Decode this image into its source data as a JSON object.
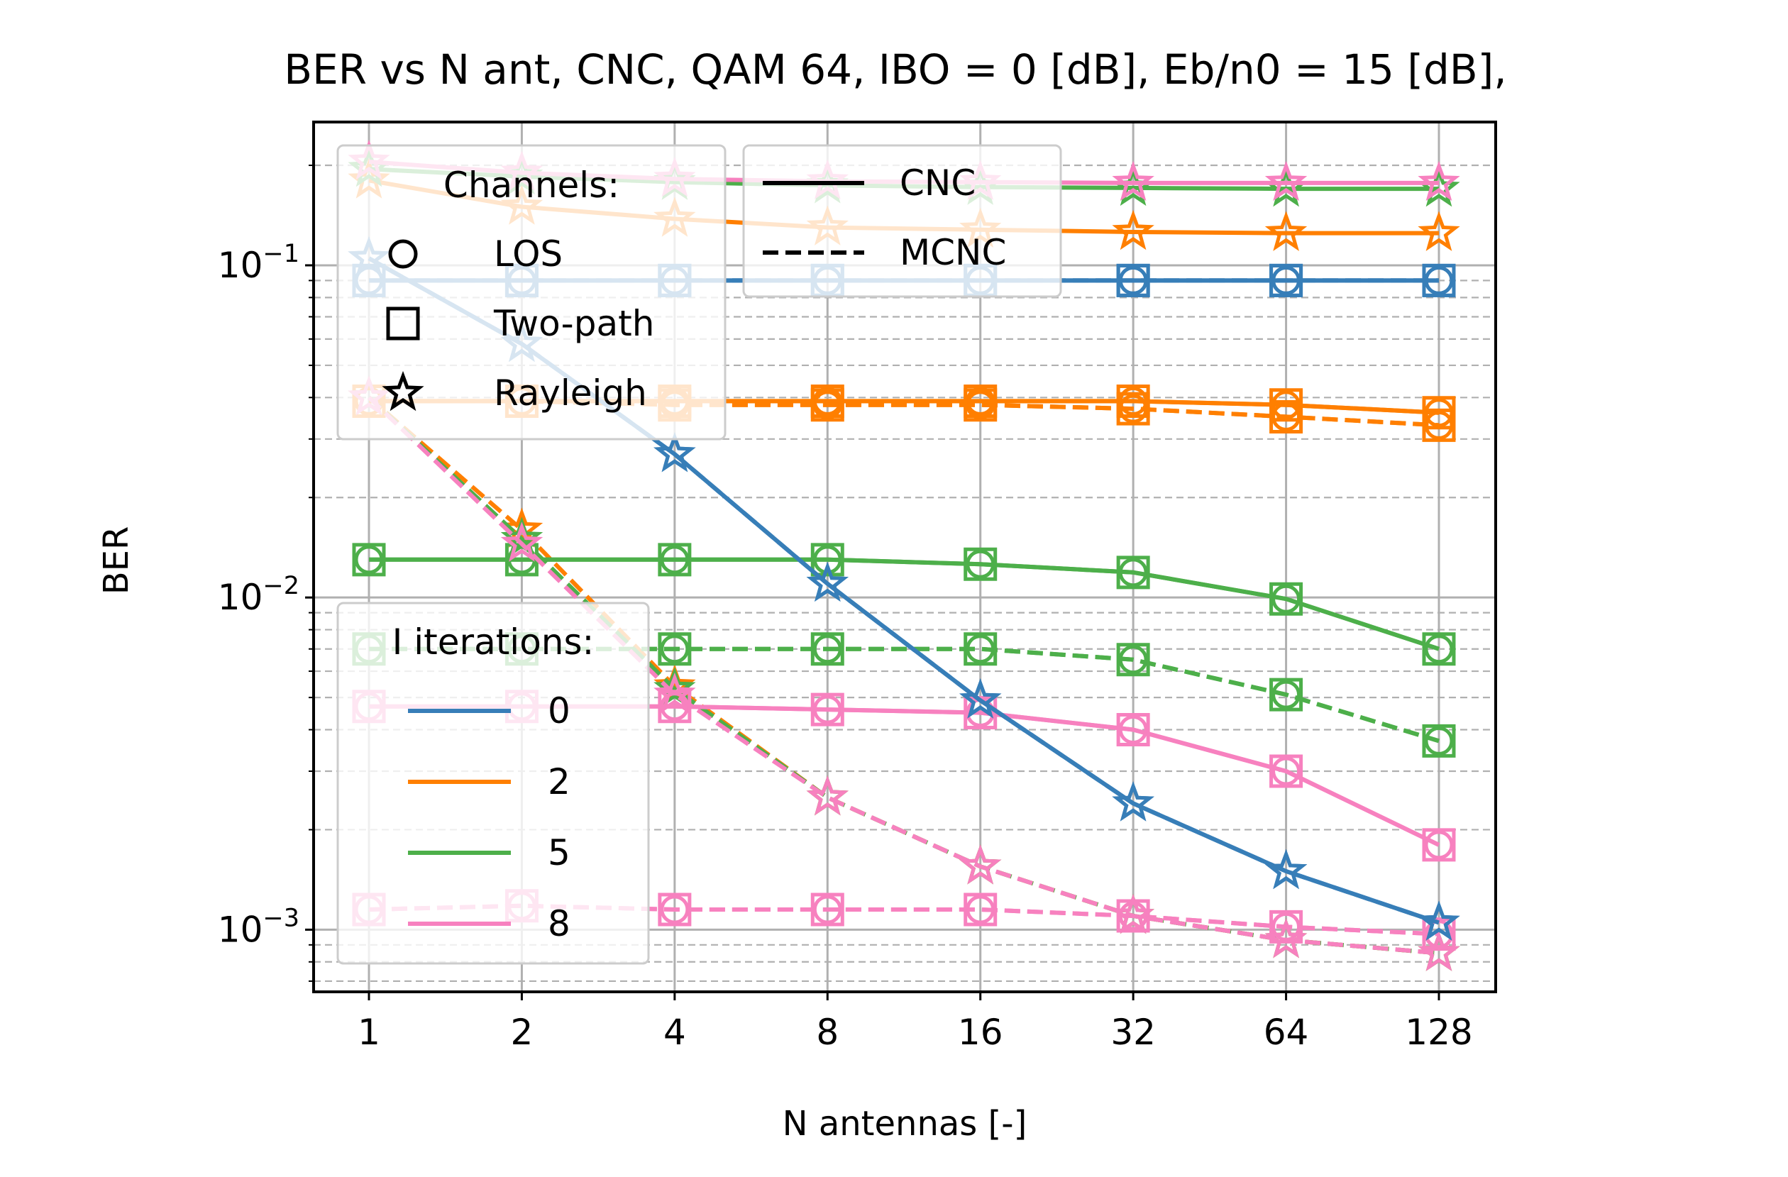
{
  "chart_data": {
    "type": "line",
    "title": "BER vs N ant, CNC, QAM 64, IBO = 0 [dB], Eb/n0 = 15 [dB],",
    "xlabel": "N antennas [-]",
    "ylabel": "BER",
    "x": [
      1,
      2,
      4,
      8,
      16,
      32,
      64,
      128
    ],
    "xscale": "log2",
    "yscale": "log10",
    "ylim": [
      0.00065,
      0.27
    ],
    "grid": true,
    "colors": {
      "0": "#377eb8",
      "2": "#ff7f00",
      "5": "#4daf4a",
      "8": "#f781bf"
    },
    "y_ticks": [
      {
        "base": "10",
        "exp": "−1",
        "value": 0.1
      },
      {
        "base": "10",
        "exp": "−2",
        "value": 0.01
      },
      {
        "base": "10",
        "exp": "−3",
        "value": 0.001
      }
    ],
    "x_tick_labels": [
      "1",
      "2",
      "4",
      "8",
      "16",
      "32",
      "64",
      "128"
    ],
    "legend_channels": {
      "title": "Channels:",
      "placement": "top-left",
      "items": [
        {
          "marker": "circle",
          "label": "LOS"
        },
        {
          "marker": "square",
          "label": "Two-path"
        },
        {
          "marker": "star",
          "label": "Rayleigh"
        }
      ]
    },
    "legend_methods": {
      "placement": "top-center",
      "items": [
        {
          "style": "solid",
          "label": "CNC"
        },
        {
          "style": "dashed",
          "label": "MCNC"
        }
      ]
    },
    "legend_iterations": {
      "title": "I iterations:",
      "placement": "lower-left",
      "items": [
        {
          "iter": "0",
          "label": "0"
        },
        {
          "iter": "2",
          "label": "2"
        },
        {
          "iter": "5",
          "label": "5"
        },
        {
          "iter": "8",
          "label": "8"
        }
      ]
    },
    "series": [
      {
        "channel": "LOS",
        "method": "CNC",
        "iter": "0",
        "values": [
          0.09,
          0.09,
          0.09,
          0.09,
          0.09,
          0.09,
          0.09,
          0.09
        ]
      },
      {
        "channel": "LOS",
        "method": "MCNC",
        "iter": "0",
        "values": [
          0.09,
          0.09,
          0.09,
          0.09,
          0.09,
          0.09,
          0.09,
          0.09
        ]
      },
      {
        "channel": "LOS",
        "method": "CNC",
        "iter": "2",
        "values": [
          0.039,
          0.039,
          0.039,
          0.039,
          0.039,
          0.039,
          0.038,
          0.036
        ]
      },
      {
        "channel": "LOS",
        "method": "MCNC",
        "iter": "2",
        "values": [
          0.039,
          0.039,
          0.038,
          0.038,
          0.038,
          0.037,
          0.035,
          0.033
        ]
      },
      {
        "channel": "LOS",
        "method": "CNC",
        "iter": "5",
        "values": [
          0.013,
          0.013,
          0.013,
          0.013,
          0.0126,
          0.0119,
          0.0099,
          0.007
        ]
      },
      {
        "channel": "LOS",
        "method": "MCNC",
        "iter": "5",
        "values": [
          0.007,
          0.007,
          0.007,
          0.007,
          0.007,
          0.0065,
          0.0051,
          0.0037
        ]
      },
      {
        "channel": "LOS",
        "method": "CNC",
        "iter": "8",
        "values": [
          0.0047,
          0.0047,
          0.0047,
          0.0046,
          0.0045,
          0.004,
          0.003,
          0.0018
        ]
      },
      {
        "channel": "LOS",
        "method": "MCNC",
        "iter": "8",
        "values": [
          0.00115,
          0.00118,
          0.00115,
          0.00115,
          0.00115,
          0.0011,
          0.00102,
          0.00097
        ]
      },
      {
        "channel": "Two-path",
        "method": "CNC",
        "iter": "0",
        "values": [
          0.09,
          0.09,
          0.09,
          0.09,
          0.09,
          0.09,
          0.09,
          0.09
        ]
      },
      {
        "channel": "Two-path",
        "method": "MCNC",
        "iter": "0",
        "values": [
          0.09,
          0.09,
          0.09,
          0.09,
          0.09,
          0.09,
          0.09,
          0.09
        ]
      },
      {
        "channel": "Two-path",
        "method": "CNC",
        "iter": "2",
        "values": [
          0.039,
          0.039,
          0.039,
          0.039,
          0.039,
          0.039,
          0.038,
          0.036
        ]
      },
      {
        "channel": "Two-path",
        "method": "MCNC",
        "iter": "2",
        "values": [
          0.039,
          0.039,
          0.038,
          0.038,
          0.038,
          0.037,
          0.035,
          0.033
        ]
      },
      {
        "channel": "Two-path",
        "method": "CNC",
        "iter": "5",
        "values": [
          0.013,
          0.013,
          0.013,
          0.013,
          0.0126,
          0.0119,
          0.0099,
          0.007
        ]
      },
      {
        "channel": "Two-path",
        "method": "MCNC",
        "iter": "5",
        "values": [
          0.007,
          0.007,
          0.007,
          0.007,
          0.007,
          0.0065,
          0.0051,
          0.0037
        ]
      },
      {
        "channel": "Two-path",
        "method": "CNC",
        "iter": "8",
        "values": [
          0.0047,
          0.0047,
          0.0047,
          0.0046,
          0.0045,
          0.004,
          0.003,
          0.0018
        ]
      },
      {
        "channel": "Two-path",
        "method": "MCNC",
        "iter": "8",
        "values": [
          0.00115,
          0.00118,
          0.00115,
          0.00115,
          0.00115,
          0.0011,
          0.00102,
          0.00097
        ]
      },
      {
        "channel": "Rayleigh",
        "method": "CNC",
        "iter": "0",
        "values": [
          0.105,
          0.058,
          0.027,
          0.011,
          0.0049,
          0.0024,
          0.0015,
          0.00105
        ]
      },
      {
        "channel": "Rayleigh",
        "method": "MCNC",
        "iter": "0",
        "values": [
          0.105,
          0.058,
          0.027,
          0.011,
          0.0049,
          0.0024,
          0.0015,
          0.00105
        ]
      },
      {
        "channel": "Rayleigh",
        "method": "CNC",
        "iter": "2",
        "values": [
          0.18,
          0.15,
          0.138,
          0.13,
          0.128,
          0.126,
          0.125,
          0.125
        ]
      },
      {
        "channel": "Rayleigh",
        "method": "MCNC",
        "iter": "2",
        "values": [
          0.04,
          0.016,
          0.0054,
          0.0025,
          0.00155,
          0.0011,
          0.00093,
          0.00085
        ]
      },
      {
        "channel": "Rayleigh",
        "method": "CNC",
        "iter": "5",
        "values": [
          0.195,
          0.185,
          0.178,
          0.174,
          0.172,
          0.171,
          0.17,
          0.17
        ]
      },
      {
        "channel": "Rayleigh",
        "method": "MCNC",
        "iter": "5",
        "values": [
          0.04,
          0.015,
          0.0053,
          0.0025,
          0.00155,
          0.0011,
          0.00093,
          0.00085
        ]
      },
      {
        "channel": "Rayleigh",
        "method": "CNC",
        "iter": "8",
        "values": [
          0.205,
          0.19,
          0.182,
          0.179,
          0.178,
          0.177,
          0.177,
          0.177
        ]
      },
      {
        "channel": "Rayleigh",
        "method": "MCNC",
        "iter": "8",
        "values": [
          0.04,
          0.0145,
          0.0051,
          0.0025,
          0.00155,
          0.0011,
          0.00093,
          0.00085
        ]
      }
    ]
  }
}
